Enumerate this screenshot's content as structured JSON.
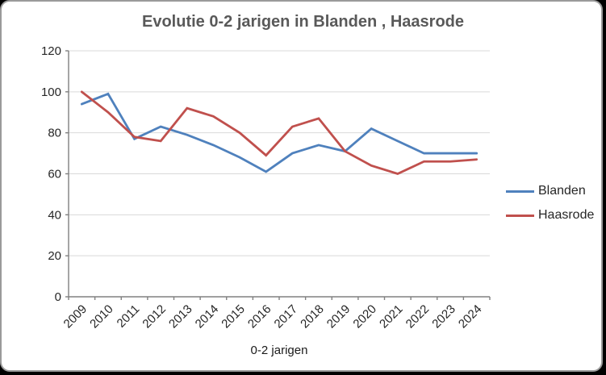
{
  "window": {
    "background_outside": "#000000",
    "card_background": "#ffffff",
    "card_border_color": "#9a9a9a"
  },
  "chart_data": {
    "type": "line",
    "title": "Evolutie 0-2 jarigen in Blanden , Haasrode",
    "xlabel": "0-2 jarigen",
    "ylabel": "",
    "categories": [
      "2009",
      "2010",
      "2011",
      "2012",
      "2013",
      "2014",
      "2015",
      "2016",
      "2017",
      "2018",
      "2019",
      "2020",
      "2021",
      "2022",
      "2023",
      "2024"
    ],
    "series": [
      {
        "name": "Blanden",
        "color": "#4F81BD",
        "values": [
          94,
          99,
          77,
          83,
          79,
          74,
          68,
          61,
          70,
          74,
          71,
          82,
          76,
          70,
          70,
          70
        ]
      },
      {
        "name": "Haasrode",
        "color": "#C0504D",
        "values": [
          100,
          90,
          78,
          76,
          92,
          88,
          80,
          69,
          83,
          87,
          71,
          64,
          60,
          66,
          66,
          67
        ]
      }
    ],
    "ylim": [
      0,
      120
    ],
    "yticks": [
      0,
      20,
      40,
      60,
      80,
      100,
      120
    ],
    "grid": "horizontal",
    "legend_position": "right",
    "colors": {
      "title_text": "#595959",
      "axis_line": "#808080",
      "gridline": "#D9D9D9",
      "tick_label": "#262626"
    }
  }
}
